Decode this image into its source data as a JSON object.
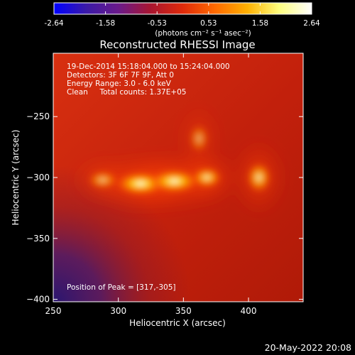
{
  "colorbar": {
    "ticks": [
      "-2.64",
      "-1.58",
      "-0.53",
      "0.53",
      "1.58",
      "2.64"
    ],
    "unit_label": "(photons cm⁻² s⁻¹ asec⁻²)",
    "stops": [
      "#0000ff",
      "#3b1aa8",
      "#6a1a8a",
      "#a81530",
      "#e02a0a",
      "#ff6a00",
      "#ffb000",
      "#ffff80",
      "#ffffff"
    ]
  },
  "chart_data": {
    "type": "heatmap",
    "title": "Reconstructed RHESSI Image",
    "xlabel": "Heliocentric X (arcsec)",
    "ylabel": "Heliocentric Y (arcsec)",
    "xlim": [
      250,
      442
    ],
    "ylim": [
      -402,
      -198
    ],
    "x_ticks": [
      250,
      300,
      350,
      400
    ],
    "y_ticks": [
      -250,
      -300,
      -350,
      -400
    ],
    "annotations": [
      "19-Dec-2014 15:18:04.000 to 15:24:04.000",
      "Detectors: 3F 6F 7F 9F, Att 0",
      "Energy Range: 3.0 - 6.0 keV",
      "Clean     Total counts: 1.37E+05"
    ],
    "peak_label": "Position of Peak = [317,-305]",
    "peak": [
      317,
      -305
    ],
    "sources": [
      {
        "x": 317,
        "y": -305,
        "rx": 20,
        "ry": 10,
        "level": 1.0
      },
      {
        "x": 343,
        "y": -303,
        "rx": 20,
        "ry": 10,
        "level": 0.98
      },
      {
        "x": 368,
        "y": -300,
        "rx": 12,
        "ry": 9,
        "level": 0.85
      },
      {
        "x": 408,
        "y": -300,
        "rx": 10,
        "ry": 13,
        "level": 0.82
      },
      {
        "x": 288,
        "y": -302,
        "rx": 12,
        "ry": 8,
        "level": 0.65
      },
      {
        "x": 362,
        "y": -268,
        "rx": 8,
        "ry": 12,
        "level": 0.55
      }
    ]
  },
  "timestamp": "20-May-2022 20:08"
}
